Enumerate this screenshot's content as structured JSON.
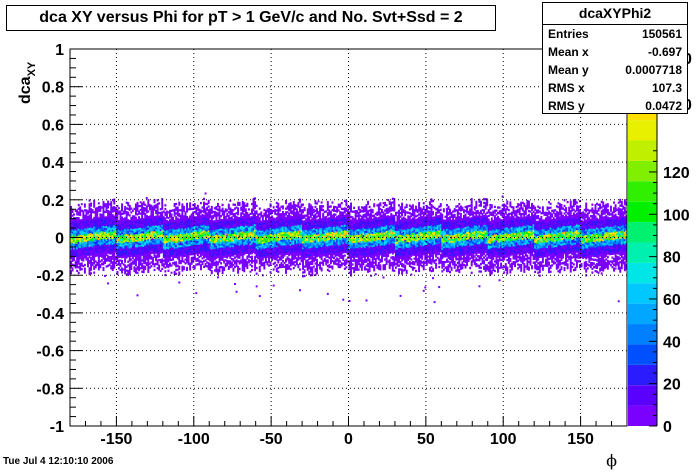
{
  "chart_data": {
    "type": "heatmap",
    "title": "dca XY versus Phi for pT > 1 GeV/c and No. Svt+Ssd = 2",
    "xlabel": "ϕ",
    "ylabel": "dca_XY",
    "xlim": [
      -180,
      180
    ],
    "ylim": [
      -1,
      1
    ],
    "x_ticks": [
      -150,
      -100,
      -50,
      0,
      50,
      100,
      150
    ],
    "y_ticks": [
      -1,
      -0.8,
      -0.6,
      -0.4,
      -0.2,
      0,
      0.2,
      0.4,
      0.6,
      0.8,
      1
    ],
    "grid": true,
    "colorbar": {
      "min": 0,
      "max": 140,
      "ticks": [
        0,
        20,
        40,
        60,
        80,
        100,
        120
      ],
      "top_partial_labels": [
        "0",
        "0"
      ],
      "palette": [
        "#7a00ff",
        "#5a00ff",
        "#2b1cff",
        "#0050ff",
        "#0080ff",
        "#00a6ff",
        "#00c8ff",
        "#00e6e6",
        "#00f0b0",
        "#00f070",
        "#00f000",
        "#30f000",
        "#80f000",
        "#c0f000",
        "#e8f000",
        "#ffe000",
        "#ffb000",
        "#ff8000"
      ]
    },
    "band": {
      "center_y": 0.0,
      "core_halfwidth": 0.02,
      "outer_halfwidth": 0.17,
      "stray_extent": [
        -0.34,
        0.24
      ],
      "sector_boundaries": [
        -150,
        -120,
        -90,
        -60,
        -30,
        0,
        30,
        60,
        90,
        120,
        150
      ]
    },
    "stats": {
      "name": "dcaXYPhi2",
      "rows": [
        {
          "label": "Entries",
          "value": "150561"
        },
        {
          "label": "Mean x",
          "value": "-0.697"
        },
        {
          "label": "Mean y",
          "value": "0.0007718"
        },
        {
          "label": "RMS x",
          "value": "107.3"
        },
        {
          "label": "RMS y",
          "value": "0.0472"
        }
      ]
    }
  },
  "footer": {
    "datestamp": "Tue Jul  4 12:10:10 2006"
  }
}
